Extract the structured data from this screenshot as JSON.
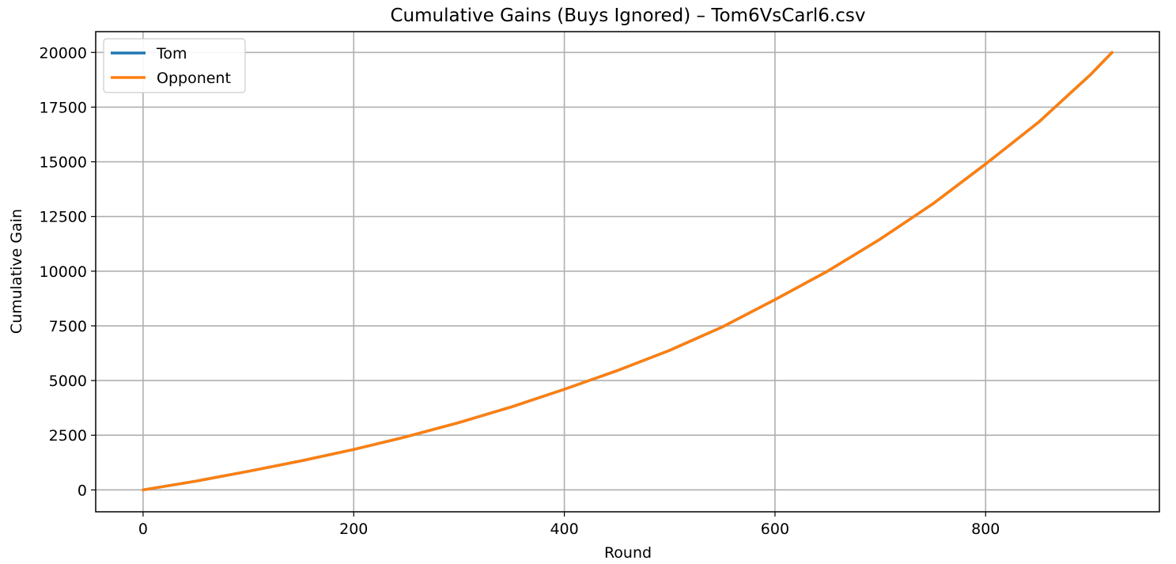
{
  "chart_data": {
    "type": "line",
    "title": "Cumulative Gains (Buys Ignored) – Tom6VsCarl6.csv",
    "xlabel": "Round",
    "ylabel": "Cumulative Gain",
    "xlim": [
      -45,
      965
    ],
    "ylim": [
      -1000,
      20950
    ],
    "xticks": [
      0,
      200,
      400,
      600,
      800
    ],
    "yticks": [
      0,
      2500,
      5000,
      7500,
      10000,
      12500,
      15000,
      17500,
      20000
    ],
    "xtick_labels": [
      "0",
      "200",
      "400",
      "600",
      "800"
    ],
    "ytick_labels": [
      "0",
      "2500",
      "5000",
      "7500",
      "10000",
      "12500",
      "15000",
      "17500",
      "20000"
    ],
    "grid": true,
    "legend_position": "upper-left",
    "x": [
      0,
      50,
      100,
      150,
      200,
      250,
      300,
      350,
      400,
      450,
      500,
      550,
      600,
      650,
      700,
      750,
      800,
      850,
      900,
      920
    ],
    "series": [
      {
        "name": "Tom",
        "color": "#1f77b4",
        "values": [
          0,
          400,
          850,
          1330,
          1850,
          2430,
          3080,
          3800,
          4600,
          5450,
          6380,
          7450,
          8700,
          10000,
          11470,
          13080,
          14900,
          16800,
          19000,
          20000
        ]
      },
      {
        "name": "Opponent",
        "color": "#ff7f0e",
        "values": [
          0,
          400,
          850,
          1330,
          1850,
          2430,
          3080,
          3800,
          4600,
          5450,
          6380,
          7450,
          8700,
          10000,
          11470,
          13080,
          14900,
          16800,
          19000,
          20000
        ]
      }
    ]
  }
}
